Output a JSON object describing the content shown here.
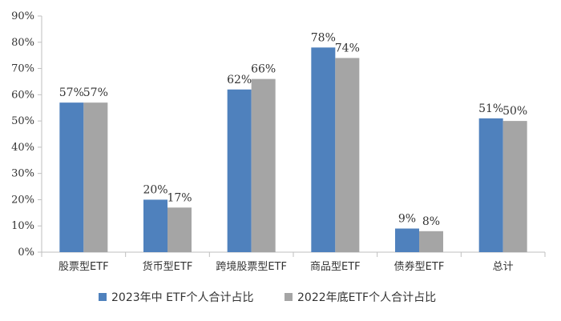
{
  "chart_data": {
    "type": "bar",
    "categories": [
      "股票型ETF",
      "货币型ETF",
      "跨境股票型ETF",
      "商品型ETF",
      "债券型ETF",
      "总计"
    ],
    "series": [
      {
        "name": "2023年中 ETF个人合计占比",
        "color": "#4f81bd",
        "values": [
          57,
          20,
          62,
          78,
          9,
          51
        ],
        "labels": [
          "57%",
          "20%",
          "62%",
          "78%",
          "9%",
          "51%"
        ]
      },
      {
        "name": "2022年底ETF个人合计占比",
        "color": "#a5a5a5",
        "values": [
          57,
          17,
          66,
          74,
          8,
          50
        ],
        "labels": [
          "57%",
          "17%",
          "66%",
          "74%",
          "8%",
          "50%"
        ]
      }
    ],
    "ylim": [
      0,
      90
    ],
    "yticks": [
      0,
      10,
      20,
      30,
      40,
      50,
      60,
      70,
      80,
      90
    ],
    "ytick_labels": [
      "0%",
      "10%",
      "20%",
      "30%",
      "40%",
      "50%",
      "60%",
      "70%",
      "80%",
      "90%"
    ],
    "grid": false,
    "legend_position": "bottom"
  }
}
